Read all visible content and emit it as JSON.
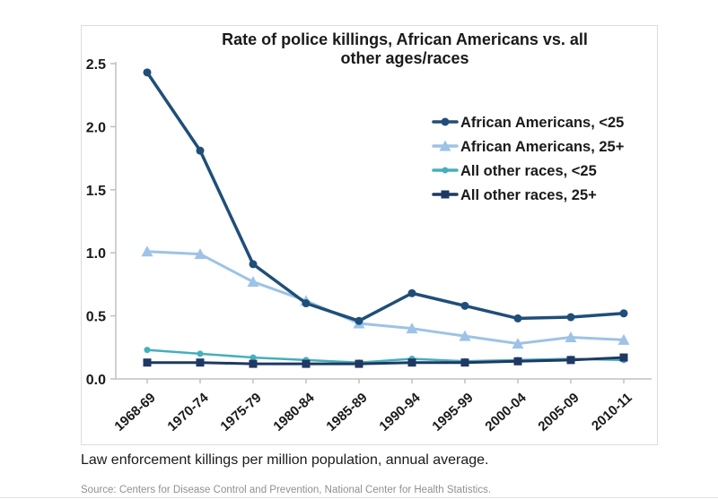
{
  "page": {
    "caption": "Law enforcement killings per million population, annual average.",
    "source": "Source: Centers for Disease Control and Prevention, National Center for Health Statistics."
  },
  "chart_data": {
    "type": "line",
    "title": "Rate of police killings, African Americans vs. all other ages/races",
    "title_lines": [
      "Rate of police killings, African Americans vs. all",
      "other ages/races"
    ],
    "categories": [
      "1968-69",
      "1970-74",
      "1975-79",
      "1980-84",
      "1985-89",
      "1990-94",
      "1995-99",
      "2000-04",
      "2005-09",
      "2010-11"
    ],
    "series": [
      {
        "name": "African Americans, <25",
        "marker": "circle",
        "color": "#1F4E79",
        "values": [
          2.43,
          1.81,
          0.91,
          0.6,
          0.46,
          0.68,
          0.58,
          0.48,
          0.49,
          0.52
        ]
      },
      {
        "name": "African Americans, 25+",
        "marker": "triangle",
        "color": "#9DC3E6",
        "values": [
          1.01,
          0.99,
          0.77,
          0.62,
          0.44,
          0.4,
          0.34,
          0.28,
          0.33,
          0.31
        ]
      },
      {
        "name": "All other races, <25",
        "marker": "circle",
        "color": "#45AFBC",
        "values": [
          0.23,
          0.2,
          0.17,
          0.15,
          0.13,
          0.16,
          0.14,
          0.15,
          0.16,
          0.15
        ]
      },
      {
        "name": "All other races, 25+",
        "marker": "square",
        "color": "#1F3864",
        "values": [
          0.13,
          0.13,
          0.12,
          0.12,
          0.12,
          0.13,
          0.13,
          0.14,
          0.15,
          0.17
        ]
      }
    ],
    "ylim": [
      0,
      2.5
    ],
    "yticks": [
      0,
      0.5,
      1,
      1.5,
      2,
      2.5
    ],
    "xlabel": "",
    "ylabel": "",
    "grid": false,
    "legend_position": "upper-right",
    "axis_color": "#C0C0C0",
    "label_color": "#1A1A1A"
  }
}
